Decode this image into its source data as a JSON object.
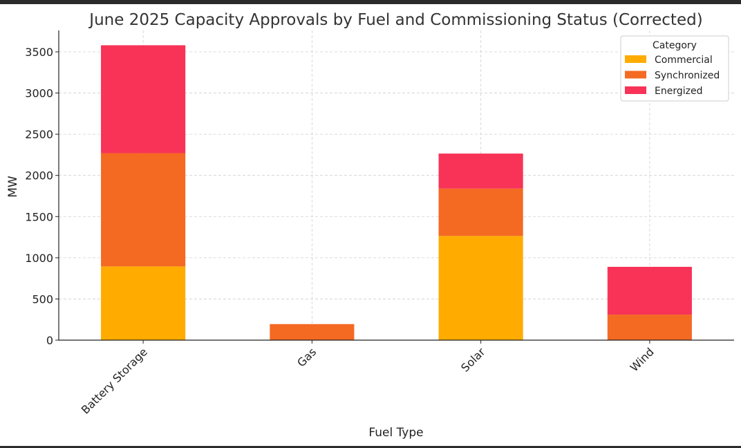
{
  "chart_data": {
    "type": "bar",
    "stacked": true,
    "title": "June 2025 Capacity Approvals by Fuel and Commissioning Status (Corrected)",
    "xlabel": "Fuel Type",
    "ylabel": "MW",
    "categories": [
      "Battery Storage",
      "Gas",
      "Solar",
      "Wind"
    ],
    "series": [
      {
        "name": "Commercial",
        "color": "#FFAB00",
        "values": [
          895,
          0,
          1265,
          0
        ]
      },
      {
        "name": "Synchronized",
        "color": "#F46A23",
        "values": [
          1375,
          195,
          575,
          310
        ]
      },
      {
        "name": "Energized",
        "color": "#F83357",
        "values": [
          1310,
          0,
          425,
          580
        ]
      }
    ],
    "ylim": [
      0,
      3760
    ],
    "yticks": [
      0,
      500,
      1000,
      1500,
      2000,
      2500,
      3000,
      3500
    ],
    "legend": {
      "title": "Category",
      "position": "top-right"
    },
    "grid": true
  }
}
